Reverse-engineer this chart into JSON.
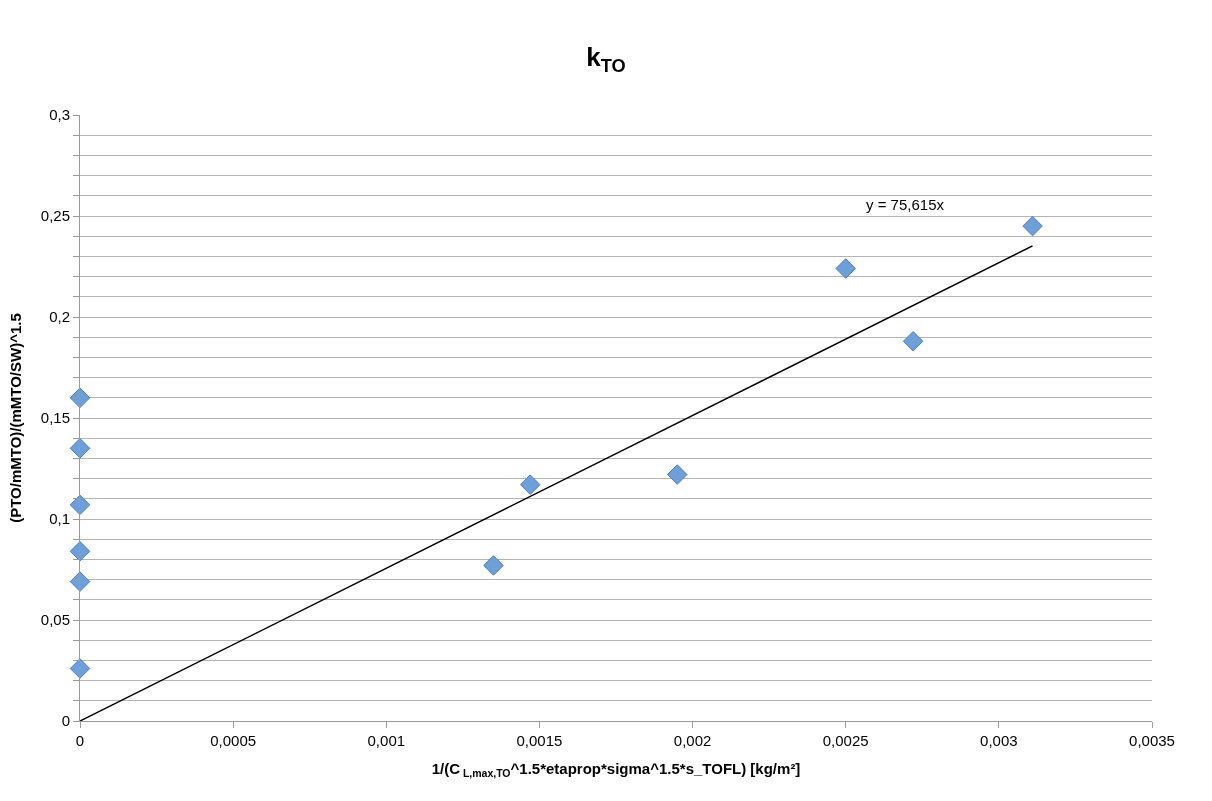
{
  "chart_data": {
    "type": "scatter",
    "title": "k$_{TO}$",
    "xlabel": "1/(C$_{ L,max,TO}$^1.5*etaprop*sigma^1.5*s_TOFL) [kg/m²]",
    "ylabel": "(PTO/mMTO)/(mMTO/SW)^1.5",
    "series": [
      {
        "color": "#6f9fd8",
        "marker": "diamond",
        "x": [
          0,
          0,
          0,
          0,
          0,
          0,
          0.00135,
          0.00147,
          0.00195,
          0.0025,
          0.00272,
          0.00311
        ],
        "values": [
          0.16,
          0.135,
          0.107,
          0.084,
          0.069,
          0.026,
          0.077,
          0.117,
          0.122,
          0.224,
          0.188,
          0.245
        ]
      },
      {
        "type": "line",
        "color": "#000000",
        "marker": "none",
        "line_style": "solid",
        "x": [
          0,
          0.00311
        ],
        "values": [
          0,
          0.2352
        ]
      }
    ],
    "annotations": [
      "y = 75,615x"
    ],
    "xlim": [
      0,
      0.0035
    ],
    "ylim": [
      0,
      0.3
    ],
    "xticks": [
      0,
      {
        "value": 0.0005,
        "label": "0,0005"
      },
      {
        "value": 0.001,
        "label": "0,001"
      },
      {
        "value": 0.0015,
        "label": "0,0015"
      },
      {
        "value": 0.002,
        "label": "0,002"
      },
      {
        "value": 0.0025,
        "label": "0,0025"
      },
      {
        "value": 0.003,
        "label": "0,003"
      },
      {
        "value": 0.0035,
        "label": "0,0035"
      }
    ],
    "yticks": [
      0,
      {
        "value": 0.01,
        "label": null
      },
      {
        "value": 0.02,
        "label": null
      },
      {
        "value": 0.03,
        "label": null
      },
      {
        "value": 0.04,
        "label": null
      },
      {
        "value": 0.05,
        "label": "0,05"
      },
      {
        "value": 0.06,
        "label": null
      },
      {
        "value": 0.07,
        "label": null
      },
      {
        "value": 0.08,
        "label": null
      },
      {
        "value": 0.09,
        "label": null
      },
      {
        "value": 0.1,
        "label": "0,1"
      },
      {
        "value": 0.11,
        "label": null
      },
      {
        "value": 0.12,
        "label": null
      },
      {
        "value": 0.13,
        "label": null
      },
      {
        "value": 0.14,
        "label": null
      },
      {
        "value": 0.15,
        "label": "0,15"
      },
      {
        "value": 0.16,
        "label": null
      },
      {
        "value": 0.17,
        "label": null
      },
      {
        "value": 0.18,
        "label": null
      },
      {
        "value": 0.19,
        "label": null
      },
      {
        "value": 0.2,
        "label": "0,2"
      },
      {
        "value": 0.21,
        "label": null
      },
      {
        "value": 0.22,
        "label": null
      },
      {
        "value": 0.23,
        "label": null
      },
      {
        "value": 0.24,
        "label": null
      },
      {
        "value": 0.25,
        "label": "0,25"
      },
      {
        "value": 0.26,
        "label": null
      },
      {
        "value": 0.27,
        "label": null
      },
      {
        "value": 0.28,
        "label": null
      },
      {
        "value": 0.29,
        "label": null
      },
      {
        "value": 0.3,
        "label": "0,3"
      }
    ],
    "grid": "y"
  }
}
